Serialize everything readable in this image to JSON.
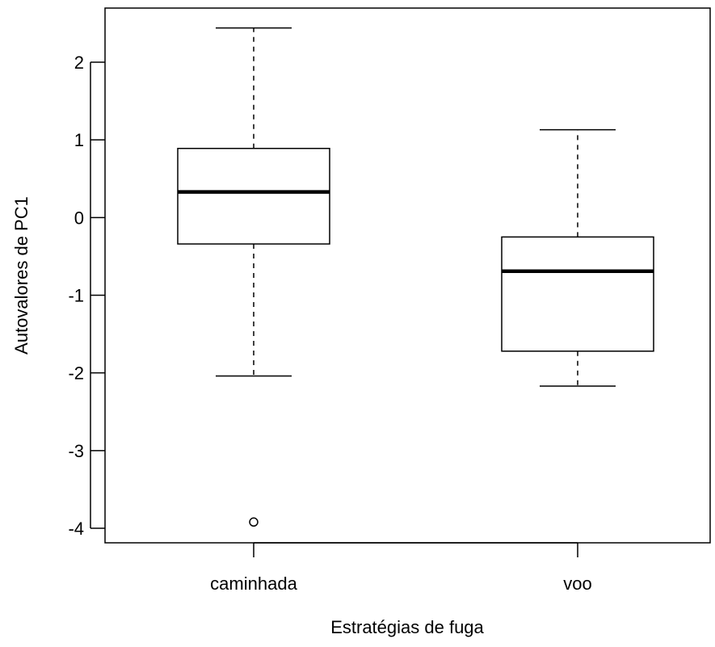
{
  "chart_data": {
    "type": "boxplot",
    "title": "",
    "xlabel": "Estratégias de fuga",
    "ylabel": "Autovalores de PC1",
    "ylim": [
      -4.2,
      2.7
    ],
    "yticks": [
      -4,
      -3,
      -2,
      -1,
      0,
      1,
      2
    ],
    "ytick_labels": [
      "-4",
      "-3",
      "-2",
      "-1",
      "0",
      "1",
      "2"
    ],
    "categories": [
      "caminhada",
      "voo"
    ],
    "grid": false,
    "boxes": [
      {
        "category": "caminhada",
        "whisker_low": -2.04,
        "q1": -0.34,
        "median": 0.33,
        "q3": 0.89,
        "whisker_high": 2.44,
        "outliers": [
          -3.92
        ]
      },
      {
        "category": "voo",
        "whisker_low": -2.17,
        "q1": -1.72,
        "median": -0.69,
        "q3": -0.25,
        "whisker_high": 1.13,
        "outliers": []
      }
    ],
    "colors": {
      "box_fill": "#ffffff",
      "stroke": "#000000"
    }
  }
}
